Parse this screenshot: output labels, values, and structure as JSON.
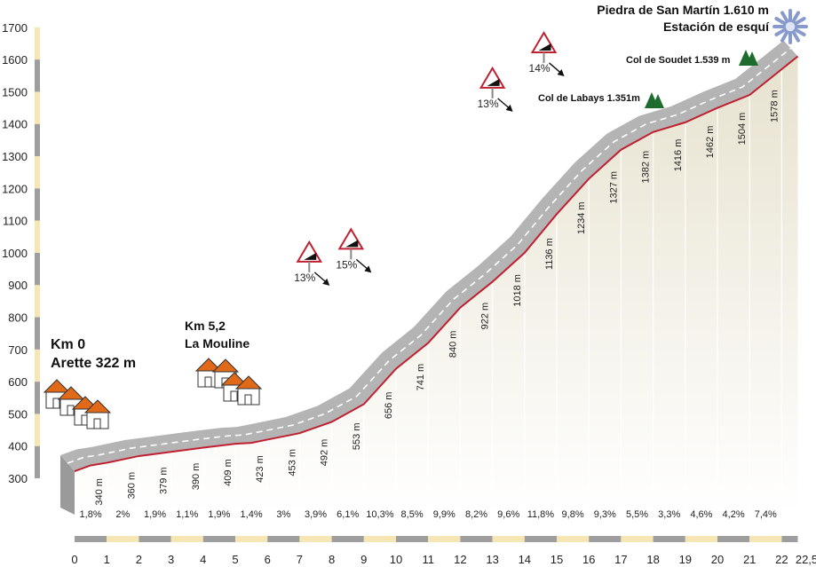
{
  "chart_data": {
    "type": "area",
    "ylim": [
      300,
      1700
    ],
    "xlim": [
      0,
      22.5
    ],
    "y_ticks": [
      "300",
      "400",
      "500",
      "600",
      "700",
      "800",
      "900",
      "1000",
      "1100",
      "1200",
      "1300",
      "1400",
      "1500",
      "1600",
      "1700"
    ],
    "x_ticks": [
      "0",
      "1",
      "2",
      "3",
      "4",
      "5",
      "6",
      "7",
      "8",
      "9",
      "10",
      "11",
      "12",
      "13",
      "14",
      "15",
      "16",
      "17",
      "18",
      "19",
      "20",
      "21",
      "22",
      "22,5"
    ],
    "profile": {
      "x": [
        0,
        0.5,
        1,
        2,
        3,
        4,
        5,
        5.5,
        6,
        7,
        8,
        9,
        10,
        11,
        12,
        13,
        14,
        15,
        16,
        17,
        18,
        19,
        20,
        21,
        22,
        22.5
      ],
      "y": [
        322,
        340,
        348,
        369,
        382,
        395,
        407,
        410,
        420,
        440,
        475,
        530,
        640,
        720,
        830,
        910,
        1000,
        1120,
        1230,
        1320,
        1375,
        1405,
        1450,
        1490,
        1570,
        1610
      ]
    },
    "elevation_labels": [
      {
        "x": 0.75,
        "label": "340 m"
      },
      {
        "x": 1.75,
        "label": "360 m"
      },
      {
        "x": 2.75,
        "label": "379 m"
      },
      {
        "x": 3.75,
        "label": "390 m"
      },
      {
        "x": 4.75,
        "label": "409 m"
      },
      {
        "x": 5.75,
        "label": "423 m"
      },
      {
        "x": 6.75,
        "label": "453 m"
      },
      {
        "x": 7.75,
        "label": "492 m"
      },
      {
        "x": 8.75,
        "label": "553 m"
      },
      {
        "x": 9.75,
        "label": "656 m"
      },
      {
        "x": 10.75,
        "label": "741 m"
      },
      {
        "x": 11.75,
        "label": "840 m"
      },
      {
        "x": 12.75,
        "label": "922 m"
      },
      {
        "x": 13.75,
        "label": "1018 m"
      },
      {
        "x": 14.75,
        "label": "1136 m"
      },
      {
        "x": 15.75,
        "label": "1234 m"
      },
      {
        "x": 16.75,
        "label": "1327 m"
      },
      {
        "x": 17.75,
        "label": "1382 m"
      },
      {
        "x": 18.75,
        "label": "1416 m"
      },
      {
        "x": 19.75,
        "label": "1462 m"
      },
      {
        "x": 20.75,
        "label": "1504 m"
      },
      {
        "x": 21.75,
        "label": "1578 m"
      }
    ],
    "gradients": [
      {
        "x": 0.5,
        "label": "1,8%"
      },
      {
        "x": 1.5,
        "label": "2%"
      },
      {
        "x": 2.5,
        "label": "1,9%"
      },
      {
        "x": 3.5,
        "label": "1,1%"
      },
      {
        "x": 4.5,
        "label": "1,9%"
      },
      {
        "x": 5.5,
        "label": "1,4%"
      },
      {
        "x": 6.5,
        "label": "3%"
      },
      {
        "x": 7.5,
        "label": "3,9%"
      },
      {
        "x": 8.5,
        "label": "6,1%"
      },
      {
        "x": 9.5,
        "label": "10,3%"
      },
      {
        "x": 10.5,
        "label": "8,5%"
      },
      {
        "x": 11.5,
        "label": "9,9%"
      },
      {
        "x": 12.5,
        "label": "8,2%"
      },
      {
        "x": 13.5,
        "label": "9,6%"
      },
      {
        "x": 14.5,
        "label": "11,8%"
      },
      {
        "x": 15.5,
        "label": "9,8%"
      },
      {
        "x": 16.5,
        "label": "9,3%"
      },
      {
        "x": 17.5,
        "label": "5,5%"
      },
      {
        "x": 18.5,
        "label": "3,3%"
      },
      {
        "x": 19.5,
        "label": "4,6%"
      },
      {
        "x": 20.5,
        "label": "4,2%"
      },
      {
        "x": 21.5,
        "label": "7,4%"
      }
    ],
    "steep_signs": [
      {
        "x": 7.3,
        "y": 1000,
        "label": "13%"
      },
      {
        "x": 8.6,
        "y": 1040,
        "label": "15%"
      },
      {
        "x": 13.0,
        "y": 1540,
        "label": "13%"
      },
      {
        "x": 14.6,
        "y": 1650,
        "label": "14%"
      }
    ],
    "annotations": {
      "start_km": "Km 0",
      "start_name": "Arette 322 m",
      "mouline_km": "Km 5,2",
      "mouline_name": "La Mouline",
      "labays": "Col de Labays 1.351m",
      "soudet": "Col de Soudet 1.539 m",
      "summit_name": "Piedra de San Martín 1.610 m",
      "summit_sub": "Estación de esquí"
    },
    "colors": {
      "road_top": "#c02030",
      "road_band": "#b4b4b4",
      "road_dash": "#ffffff",
      "fill_top": "#e7e2cf",
      "fill_bottom": "#ffffff",
      "axis_grey": "#9e9e9e",
      "axis_cream": "#f5e6b4",
      "house_roof": "#e06a18",
      "tree": "#1e6b2e",
      "snow": "#8899cc"
    }
  }
}
